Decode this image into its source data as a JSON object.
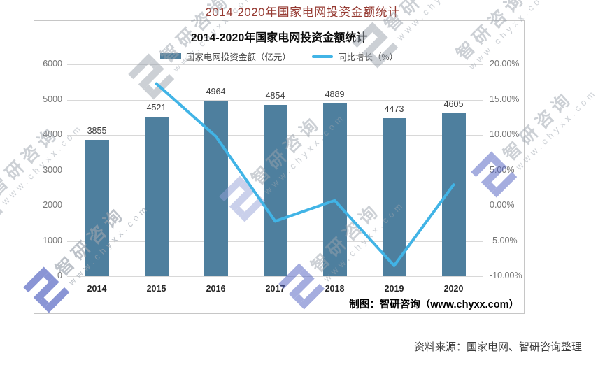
{
  "page": {
    "title": "2014-2020年国家电网投资金额统计",
    "source_note": "资料来源：国家电网、智研咨询整理"
  },
  "chart": {
    "credit": "制图：智研咨询（www.chyxx.com）"
  },
  "watermark": {
    "name": "智研咨询",
    "url": "www.chyxx.com"
  },
  "chart_data": {
    "type": "bar+line",
    "title": "2014-2020年国家电网投资金额统计",
    "categories": [
      "2014",
      "2015",
      "2016",
      "2017",
      "2018",
      "2019",
      "2020"
    ],
    "series": [
      {
        "name": "国家电网投资金额（亿元）",
        "type": "bar",
        "axis": "left",
        "color": "#4e7f9e",
        "values": [
          3855,
          4521,
          4964,
          4854,
          4889,
          4473,
          4605
        ]
      },
      {
        "name": "同比增长（%）",
        "type": "line",
        "axis": "right",
        "color": "#41b4e6",
        "values": [
          null,
          17.27,
          9.8,
          -2.22,
          0.72,
          -8.51,
          2.95
        ]
      }
    ],
    "left_axis": {
      "min": 0,
      "max": 6000,
      "labels": [
        "6000",
        "5000",
        "4000",
        "3000",
        "2000",
        "1000",
        "0"
      ]
    },
    "right_axis": {
      "min": -10,
      "max": 20,
      "labels": [
        "20.00%",
        "15.00%",
        "10.00%",
        "5.00%",
        "0.00%",
        "-5.00%",
        "-10.00%"
      ]
    },
    "grid": true,
    "legend_position": "top"
  }
}
